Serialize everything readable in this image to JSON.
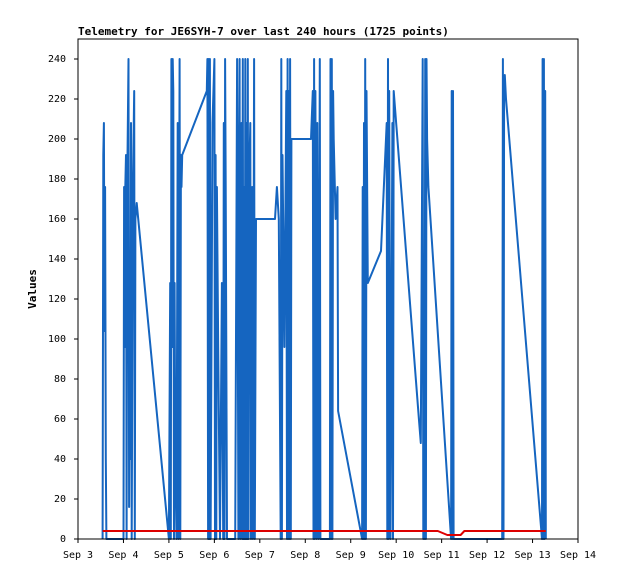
{
  "chart_data": {
    "type": "line",
    "title": "Telemetry for JE6SYH-7 over last 240 hours (1725 points)",
    "xlabel": "",
    "ylabel": "Values",
    "ylim": [
      0,
      250
    ],
    "xlim": [
      "2023-09-03",
      "2023-09-14"
    ],
    "y_ticks": [
      0,
      20,
      40,
      60,
      80,
      100,
      120,
      140,
      160,
      180,
      200,
      220,
      240
    ],
    "x_ticks": [
      {
        "date": "2023-09-03",
        "label": "Sep 3"
      },
      {
        "date": "2023-09-04",
        "label": "Sep 4"
      },
      {
        "date": "2023-09-05",
        "label": "Sep 5"
      },
      {
        "date": "2023-09-06",
        "label": "Sep 6"
      },
      {
        "date": "2023-09-07",
        "label": "Sep 7"
      },
      {
        "date": "2023-09-08",
        "label": "Sep 8"
      },
      {
        "date": "2023-09-09",
        "label": "Sep 9"
      },
      {
        "date": "2023-09-10",
        "label": "Sep 10"
      },
      {
        "date": "2023-09-11",
        "label": "Sep 11"
      },
      {
        "date": "2023-09-12",
        "label": "Sep 12"
      },
      {
        "date": "2023-09-13",
        "label": "Sep 13"
      },
      {
        "date": "2023-09-14",
        "label": "Sep 14"
      }
    ],
    "grid": false,
    "colors": {
      "series_1": "#1565c0",
      "series_2": "#dd0000"
    },
    "series": [
      {
        "color": "#1565c0",
        "points": [
          [
            "2023-09-03 13:00",
            0
          ],
          [
            "2023-09-03 13:20",
            192
          ],
          [
            "2023-09-03 13:40",
            208
          ],
          [
            "2023-09-03 14:00",
            104
          ],
          [
            "2023-09-03 14:20",
            176
          ],
          [
            "2023-09-03 14:40",
            40
          ],
          [
            "2023-09-03 15:00",
            0
          ],
          [
            "2023-09-04 00:00",
            0
          ],
          [
            "2023-09-04 00:20",
            176
          ],
          [
            "2023-09-04 00:40",
            96
          ],
          [
            "2023-09-04 01:00",
            176
          ],
          [
            "2023-09-04 01:20",
            192
          ],
          [
            "2023-09-04 01:40",
            0
          ],
          [
            "2023-09-04 02:00",
            176
          ],
          [
            "2023-09-04 02:40",
            240
          ],
          [
            "2023-09-04 03:00",
            16
          ],
          [
            "2023-09-04 03:20",
            144
          ],
          [
            "2023-09-04 03:40",
            40
          ],
          [
            "2023-09-04 04:00",
            208
          ],
          [
            "2023-09-04 04:20",
            0
          ],
          [
            "2023-09-04 05:00",
            176
          ],
          [
            "2023-09-04 05:40",
            224
          ],
          [
            "2023-09-04 06:00",
            0
          ],
          [
            "2023-09-04 06:20",
            160
          ],
          [
            "2023-09-04 07:00",
            168
          ],
          [
            "2023-09-05 00:00",
            0
          ],
          [
            "2023-09-05 00:40",
            128
          ],
          [
            "2023-09-05 01:00",
            0
          ],
          [
            "2023-09-05 01:20",
            240
          ],
          [
            "2023-09-05 01:40",
            96
          ],
          [
            "2023-09-05 02:00",
            240
          ],
          [
            "2023-09-05 02:20",
            224
          ],
          [
            "2023-09-05 02:40",
            0
          ],
          [
            "2023-09-05 03:00",
            128
          ],
          [
            "2023-09-05 03:20",
            48
          ],
          [
            "2023-09-05 04:00",
            0
          ],
          [
            "2023-09-05 04:40",
            208
          ],
          [
            "2023-09-05 05:00",
            0
          ],
          [
            "2023-09-05 05:40",
            240
          ],
          [
            "2023-09-05 06:00",
            0
          ],
          [
            "2023-09-05 06:20",
            192
          ],
          [
            "2023-09-05 06:40",
            176
          ],
          [
            "2023-09-05 07:00",
            192
          ],
          [
            "2023-09-05 20:00",
            224
          ],
          [
            "2023-09-05 20:20",
            240
          ],
          [
            "2023-09-05 20:40",
            0
          ],
          [
            "2023-09-05 21:00",
            240
          ],
          [
            "2023-09-05 21:20",
            0
          ],
          [
            "2023-09-05 21:40",
            240
          ],
          [
            "2023-09-05 22:00",
            0
          ],
          [
            "2023-09-05 23:00",
            208
          ],
          [
            "2023-09-06 00:00",
            240
          ],
          [
            "2023-09-06 00:20",
            0
          ],
          [
            "2023-09-06 00:40",
            192
          ],
          [
            "2023-09-06 01:00",
            0
          ],
          [
            "2023-09-06 01:20",
            176
          ],
          [
            "2023-09-06 02:00",
            96
          ],
          [
            "2023-09-06 03:00",
            0
          ],
          [
            "2023-09-06 04:00",
            128
          ],
          [
            "2023-09-06 04:40",
            0
          ],
          [
            "2023-09-06 05:00",
            208
          ],
          [
            "2023-09-06 05:20",
            0
          ],
          [
            "2023-09-06 05:40",
            240
          ],
          [
            "2023-09-06 06:00",
            176
          ],
          [
            "2023-09-06 06:40",
            0
          ],
          [
            "2023-09-06 11:00",
            0
          ],
          [
            "2023-09-06 12:00",
            240
          ],
          [
            "2023-09-06 12:40",
            0
          ],
          [
            "2023-09-06 13:00",
            176
          ],
          [
            "2023-09-06 13:20",
            240
          ],
          [
            "2023-09-06 13:40",
            0
          ],
          [
            "2023-09-06 14:20",
            208
          ],
          [
            "2023-09-06 14:40",
            0
          ],
          [
            "2023-09-06 15:00",
            240
          ],
          [
            "2023-09-06 15:20",
            0
          ],
          [
            "2023-09-06 15:40",
            176
          ],
          [
            "2023-09-06 16:00",
            0
          ],
          [
            "2023-09-06 16:20",
            240
          ],
          [
            "2023-09-06 16:40",
            0
          ],
          [
            "2023-09-06 17:00",
            208
          ],
          [
            "2023-09-06 17:20",
            0
          ],
          [
            "2023-09-06 17:40",
            240
          ],
          [
            "2023-09-06 18:00",
            0
          ],
          [
            "2023-09-06 18:20",
            176
          ],
          [
            "2023-09-06 19:00",
            208
          ],
          [
            "2023-09-06 19:20",
            0
          ],
          [
            "2023-09-06 20:00",
            176
          ],
          [
            "2023-09-06 20:20",
            0
          ],
          [
            "2023-09-06 21:00",
            240
          ],
          [
            "2023-09-06 21:20",
            0
          ],
          [
            "2023-09-06 22:00",
            160
          ],
          [
            "2023-09-07 08:00",
            160
          ],
          [
            "2023-09-07 09:00",
            176
          ],
          [
            "2023-09-07 10:00",
            160
          ],
          [
            "2023-09-07 11:00",
            0
          ],
          [
            "2023-09-07 11:20",
            240
          ],
          [
            "2023-09-07 11:40",
            0
          ],
          [
            "2023-09-07 12:00",
            192
          ],
          [
            "2023-09-07 13:00",
            96
          ],
          [
            "2023-09-07 14:00",
            224
          ],
          [
            "2023-09-07 14:20",
            0
          ],
          [
            "2023-09-07 14:40",
            240
          ],
          [
            "2023-09-07 15:00",
            0
          ],
          [
            "2023-09-07 15:20",
            224
          ],
          [
            "2023-09-07 15:40",
            0
          ],
          [
            "2023-09-07 16:00",
            240
          ],
          [
            "2023-09-07 16:20",
            0
          ],
          [
            "2023-09-07 16:40",
            200
          ],
          [
            "2023-09-08 03:00",
            200
          ],
          [
            "2023-09-08 04:00",
            224
          ],
          [
            "2023-09-08 04:20",
            0
          ],
          [
            "2023-09-08 04:40",
            240
          ],
          [
            "2023-09-08 05:00",
            0
          ],
          [
            "2023-09-08 05:20",
            224
          ],
          [
            "2023-09-08 06:00",
            0
          ],
          [
            "2023-09-08 06:20",
            208
          ],
          [
            "2023-09-08 07:00",
            0
          ],
          [
            "2023-09-08 07:40",
            240
          ],
          [
            "2023-09-08 08:00",
            0
          ],
          [
            "2023-09-08 08:20",
            0
          ],
          [
            "2023-09-08 13:00",
            0
          ],
          [
            "2023-09-08 13:20",
            240
          ],
          [
            "2023-09-08 13:40",
            0
          ],
          [
            "2023-09-08 14:00",
            240
          ],
          [
            "2023-09-08 14:20",
            0
          ],
          [
            "2023-09-08 14:40",
            224
          ],
          [
            "2023-09-08 15:00",
            200
          ],
          [
            "2023-09-08 16:00",
            160
          ],
          [
            "2023-09-08 17:00",
            176
          ],
          [
            "2023-09-08 17:20",
            64
          ],
          [
            "2023-09-09 06:00",
            0
          ],
          [
            "2023-09-09 06:20",
            176
          ],
          [
            "2023-09-09 06:40",
            0
          ],
          [
            "2023-09-09 07:00",
            208
          ],
          [
            "2023-09-09 07:20",
            0
          ],
          [
            "2023-09-09 07:40",
            240
          ],
          [
            "2023-09-09 08:00",
            0
          ],
          [
            "2023-09-09 08:20",
            224
          ],
          [
            "2023-09-09 08:40",
            180
          ],
          [
            "2023-09-09 09:00",
            128
          ],
          [
            "2023-09-09 16:00",
            144
          ],
          [
            "2023-09-09 19:00",
            208
          ],
          [
            "2023-09-09 19:20",
            0
          ],
          [
            "2023-09-09 19:40",
            240
          ],
          [
            "2023-09-09 20:00",
            0
          ],
          [
            "2023-09-09 20:20",
            224
          ],
          [
            "2023-09-09 21:00",
            0
          ],
          [
            "2023-09-09 22:00",
            208
          ],
          [
            "2023-09-09 22:20",
            0
          ],
          [
            "2023-09-09 22:40",
            224
          ],
          [
            "2023-09-10 12:00",
            60
          ],
          [
            "2023-09-10 13:00",
            48
          ],
          [
            "2023-09-10 14:00",
            240
          ],
          [
            "2023-09-10 14:20",
            0
          ],
          [
            "2023-09-10 14:40",
            96
          ],
          [
            "2023-09-10 15:00",
            0
          ],
          [
            "2023-09-10 15:20",
            240
          ],
          [
            "2023-09-10 15:40",
            0
          ],
          [
            "2023-09-10 16:00",
            240
          ],
          [
            "2023-09-10 16:20",
            200
          ],
          [
            "2023-09-10 17:00",
            176
          ],
          [
            "2023-09-11 05:00",
            0
          ],
          [
            "2023-09-11 05:20",
            224
          ],
          [
            "2023-09-11 05:40",
            0
          ],
          [
            "2023-09-11 06:00",
            224
          ],
          [
            "2023-09-11 06:20",
            0
          ],
          [
            "2023-09-12 08:00",
            0
          ],
          [
            "2023-09-12 08:20",
            240
          ],
          [
            "2023-09-12 08:40",
            0
          ],
          [
            "2023-09-12 09:00",
            224
          ],
          [
            "2023-09-12 09:20",
            232
          ],
          [
            "2023-09-12 10:00",
            220
          ],
          [
            "2023-09-13 05:00",
            0
          ],
          [
            "2023-09-13 05:20",
            240
          ],
          [
            "2023-09-13 05:40",
            0
          ],
          [
            "2023-09-13 06:00",
            240
          ],
          [
            "2023-09-13 06:20",
            0
          ],
          [
            "2023-09-13 06:40",
            224
          ],
          [
            "2023-09-13 07:00",
            0
          ]
        ]
      },
      {
        "color": "#dd0000",
        "points": [
          [
            "2023-09-03 13:00",
            4
          ],
          [
            "2023-09-10 22:00",
            4
          ],
          [
            "2023-09-11 03:00",
            2
          ],
          [
            "2023-09-11 10:00",
            2
          ],
          [
            "2023-09-11 12:00",
            4
          ],
          [
            "2023-09-13 07:00",
            4
          ]
        ]
      }
    ]
  }
}
